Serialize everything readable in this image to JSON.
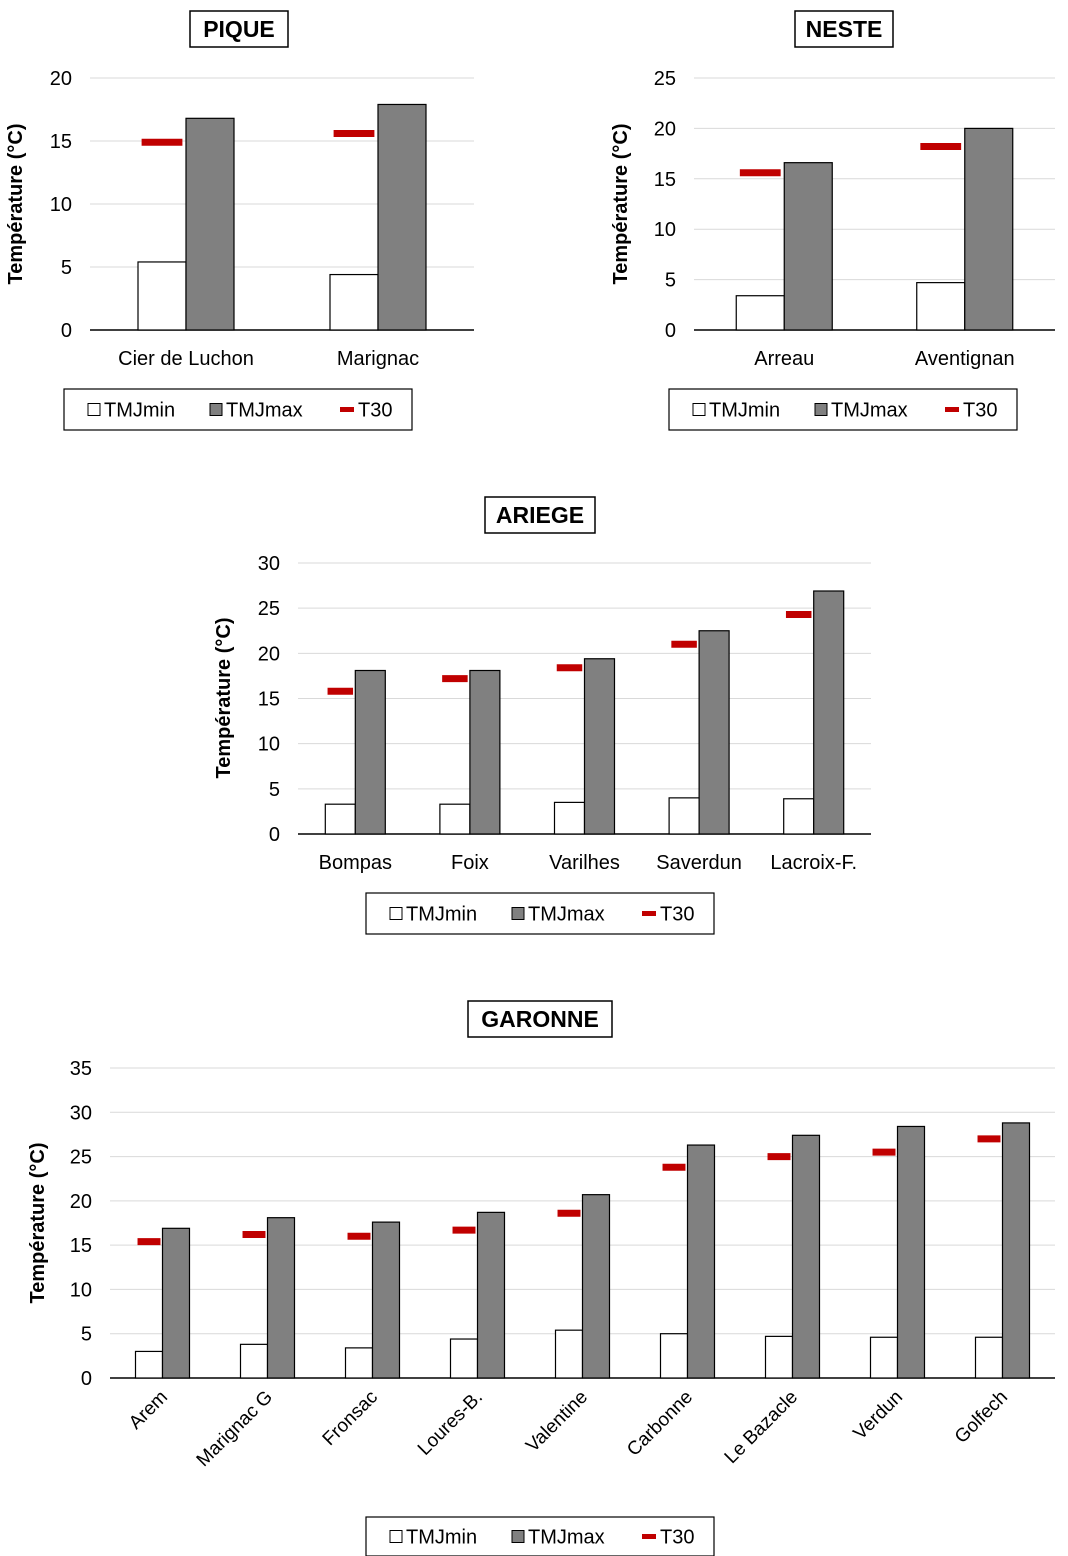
{
  "colors": {
    "tmjmin": "#ffffff",
    "tmjmax": "#808080",
    "t30": "#c00000",
    "grid": "#d9d9d9",
    "outline": "#000000"
  },
  "legend": {
    "tmjmin": "TMJmin",
    "tmjmax": "TMJmax",
    "t30": "T30"
  },
  "chart_data": [
    {
      "type": "bar",
      "title": "PIQUE",
      "ylabel": "Température (°C)",
      "ylim": [
        0,
        20
      ],
      "yticks": [
        0,
        5,
        10,
        15,
        20
      ],
      "grid": true,
      "legend_position": "bottom",
      "categories": [
        "Cier de Luchon",
        "Marignac"
      ],
      "series": [
        {
          "name": "TMJmin",
          "values": [
            5.4,
            4.4
          ]
        },
        {
          "name": "TMJmax",
          "values": [
            16.8,
            17.9
          ]
        },
        {
          "name": "T30",
          "values": [
            14.9,
            15.6
          ]
        }
      ]
    },
    {
      "type": "bar",
      "title": "NESTE",
      "ylabel": "Température (°C)",
      "ylim": [
        0,
        25
      ],
      "yticks": [
        0,
        5,
        10,
        15,
        20,
        25
      ],
      "grid": true,
      "legend_position": "bottom",
      "categories": [
        "Arreau",
        "Aventignan"
      ],
      "series": [
        {
          "name": "TMJmin",
          "values": [
            3.4,
            4.7
          ]
        },
        {
          "name": "TMJmax",
          "values": [
            16.6,
            20.0
          ]
        },
        {
          "name": "T30",
          "values": [
            15.6,
            18.2
          ]
        }
      ]
    },
    {
      "type": "bar",
      "title": "ARIEGE",
      "ylabel": "Température (°C)",
      "ylim": [
        0,
        30
      ],
      "yticks": [
        0,
        5,
        10,
        15,
        20,
        25,
        30
      ],
      "grid": true,
      "legend_position": "bottom",
      "categories": [
        "Bompas",
        "Foix",
        "Varilhes",
        "Saverdun",
        "Lacroix-F."
      ],
      "series": [
        {
          "name": "TMJmin",
          "values": [
            3.3,
            3.3,
            3.5,
            4.0,
            3.9
          ]
        },
        {
          "name": "TMJmax",
          "values": [
            18.1,
            18.1,
            19.4,
            22.5,
            26.9
          ]
        },
        {
          "name": "T30",
          "values": [
            15.8,
            17.2,
            18.4,
            21.0,
            24.3
          ]
        }
      ]
    },
    {
      "type": "bar",
      "title": "GARONNE",
      "ylabel": "Température (°C)",
      "ylim": [
        0,
        35
      ],
      "yticks": [
        0,
        5,
        10,
        15,
        20,
        25,
        30,
        35
      ],
      "grid": true,
      "legend_position": "bottom",
      "categories": [
        "Arem",
        "Marignac G",
        "Fronsac",
        "Loures-B.",
        "Valentine",
        "Carbonne",
        "Le Bazacle",
        "Verdun",
        "Golfech"
      ],
      "series": [
        {
          "name": "TMJmin",
          "values": [
            3.0,
            3.8,
            3.4,
            4.4,
            5.4,
            5.0,
            4.7,
            4.6,
            4.6
          ]
        },
        {
          "name": "TMJmax",
          "values": [
            16.9,
            18.1,
            17.6,
            18.7,
            20.7,
            26.3,
            27.4,
            28.4,
            28.8
          ]
        },
        {
          "name": "T30",
          "values": [
            15.4,
            16.2,
            16.0,
            16.7,
            18.6,
            23.8,
            25.0,
            25.5,
            27.0
          ]
        }
      ]
    }
  ]
}
